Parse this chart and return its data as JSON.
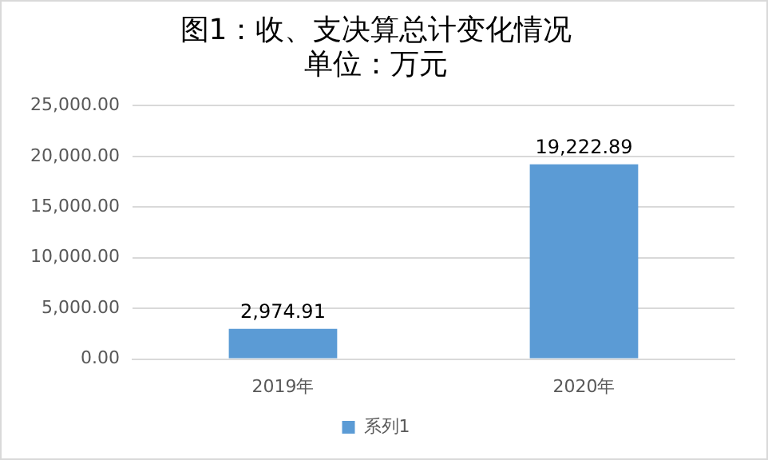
{
  "chart_data": {
    "type": "bar",
    "title": "图1：收、支决算总计变化情况",
    "subtitle": "单位：万元",
    "categories": [
      "2019年",
      "2020年"
    ],
    "series": [
      {
        "name": "系列1",
        "color": "#5b9bd5",
        "values": [
          2974.91,
          19222.89
        ],
        "value_labels": [
          "2,974.91",
          "19,222.89"
        ]
      }
    ],
    "ylim": [
      0,
      25000
    ],
    "yticks": [
      {
        "value": 0,
        "label": "0.00"
      },
      {
        "value": 5000,
        "label": "5,000.00"
      },
      {
        "value": 10000,
        "label": "10,000.00"
      },
      {
        "value": 15000,
        "label": "15,000.00"
      },
      {
        "value": 20000,
        "label": "20,000.00"
      },
      {
        "value": 25000,
        "label": "25,000.00"
      }
    ],
    "grid": "y",
    "legend": "bottom"
  }
}
